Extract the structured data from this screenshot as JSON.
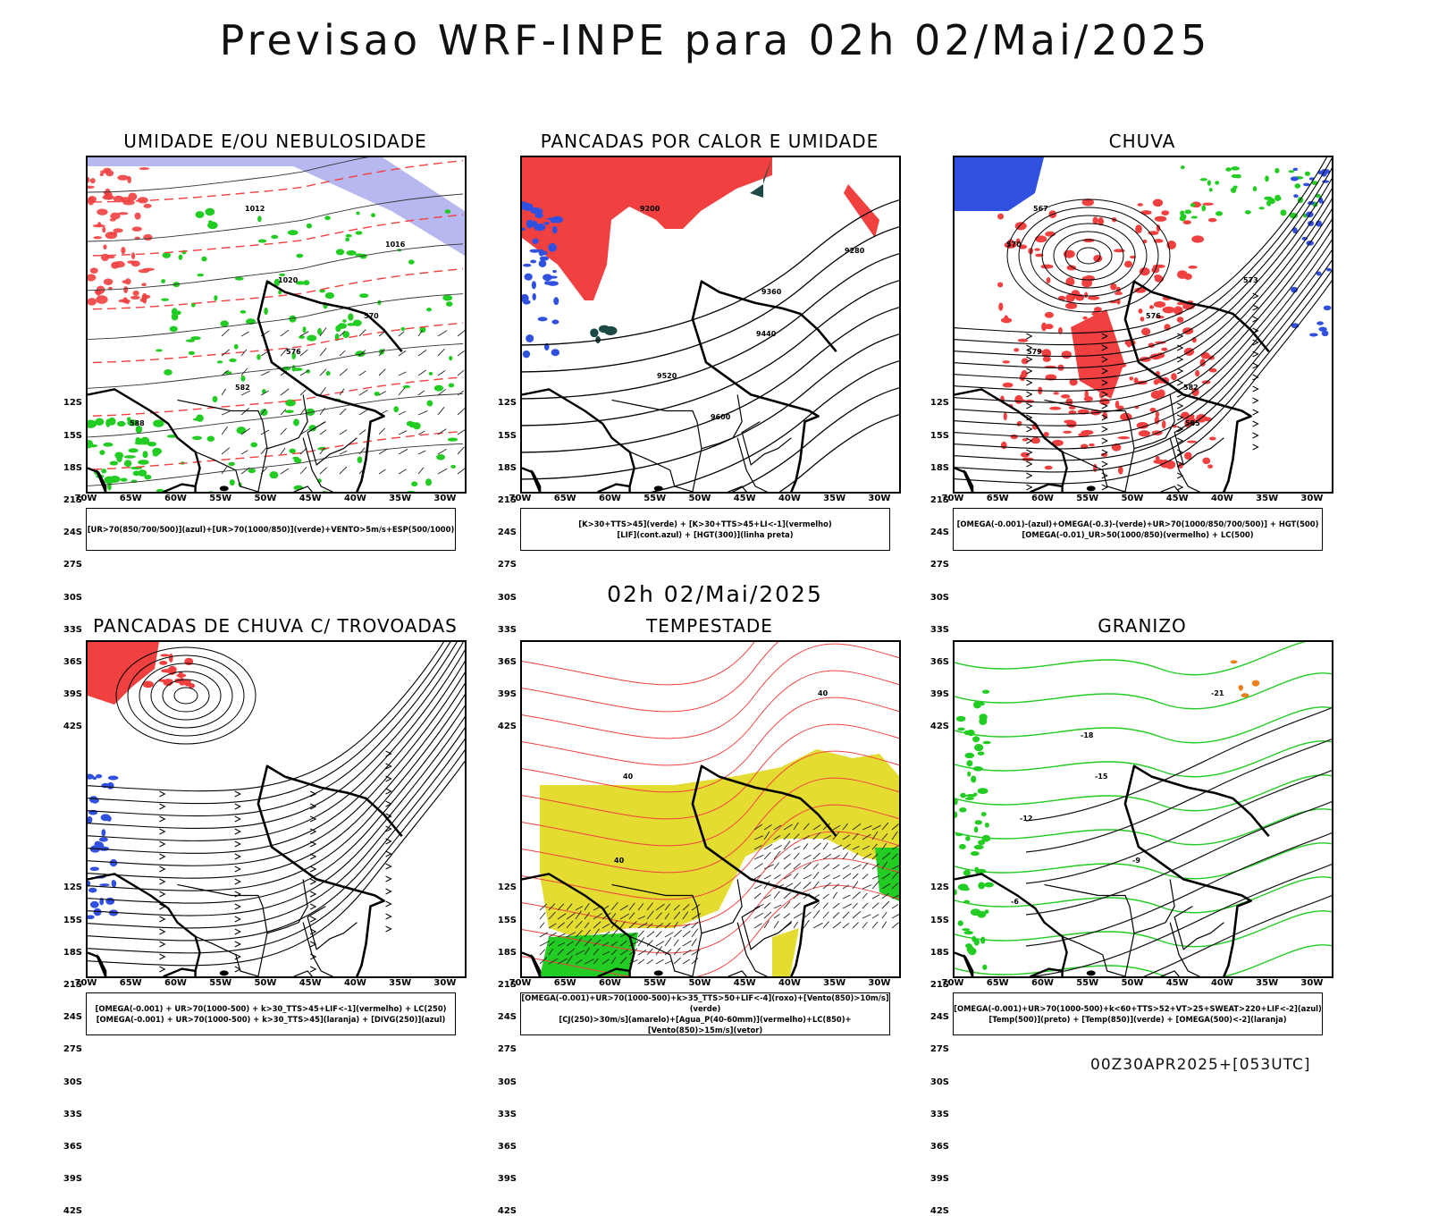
{
  "main_title": "Previsao WRF-INPE  para 02h 02/Mai/2025",
  "middle_label": "02h 02/Mai/2025",
  "footer_stamp": "00Z30APR2025+[053UTC]",
  "axis": {
    "lat_labels": [
      "12S",
      "15S",
      "18S",
      "21S",
      "24S",
      "27S",
      "30S",
      "33S",
      "36S",
      "39S",
      "42S"
    ],
    "lon_labels": [
      "70W",
      "65W",
      "60W",
      "55W",
      "50W",
      "45W",
      "40W",
      "35W",
      "30W"
    ]
  },
  "panels": [
    {
      "title": "UMIDADE E/OU NEBULOSIDADE",
      "legend_lines": [
        "[UR>70(850/700/500)](azul)+[UR>70(1000/850)](verde)+VENTO>5m/s+ESP(500/1000)"
      ],
      "contour_labels": [
        "1012",
        "1016",
        "1020",
        "570",
        "576",
        "582",
        "588"
      ]
    },
    {
      "title": "PANCADAS POR CALOR E UMIDADE",
      "legend_lines": [
        "[K>30+TTS>45](verde) + [K>30+TTS>45+LI<-1](vermelho)",
        "[LIF](cont.azul) + [HGT(300)](linha preta)"
      ],
      "contour_labels": [
        "9200",
        "9280",
        "9360",
        "9440",
        "9520",
        "9600"
      ]
    },
    {
      "title": "CHUVA",
      "legend_lines": [
        "[OMEGA(-0.001)-(azul)+OMEGA(-0.3)-(verde)+UR>70(1000/850/700/500)] + HGT(500)",
        "[OMEGA(-0.01)_UR>50(1000/850)(vermelho) + LC(500)"
      ],
      "contour_labels": [
        "567",
        "570",
        "573",
        "576",
        "579",
        "582",
        "585"
      ]
    },
    {
      "title": "PANCADAS DE CHUVA C/ TROVOADAS",
      "legend_lines": [
        "[OMEGA(-0.001) + UR>70(1000-500) + k>30_TTS>45+LIF<-1](vermelho) + LC(250)",
        "[OMEGA(-0.001) + UR>70(1000-500) + k>30_TTS>45](laranja) + [DIVG(250)](azul)"
      ],
      "contour_labels": []
    },
    {
      "title": "TEMPESTADE",
      "legend_lines": [
        "[OMEGA(-0.001)+UR>70(1000-500)+k>35_TTS>50+LIF<-4](roxo)+[Vento(850)>10m/s](verde)",
        "[CJ(250)>30m/s](amarelo)+[Agua_P(40-60mm)](vermelho)+LC(850)+[Vento(850)>15m/s](vetor)"
      ],
      "contour_labels": [
        "40",
        "40",
        "40"
      ]
    },
    {
      "title": "GRANIZO",
      "legend_lines": [
        "[OMEGA(-0.001)+UR>70(1000-500)+k<60+TTS>52+VT>25+SWEAT>220+LIF<-2](azul)",
        "[Temp(500)](preto) + [Temp(850)](verde) + [OMEGA(500)<-2](laranja)"
      ],
      "contour_labels": [
        "-21",
        "-18",
        "-15",
        "-12",
        "-9",
        "-6"
      ]
    }
  ],
  "colors": {
    "red": "#f04040",
    "blue": "#3050e0",
    "green": "#22cc22",
    "lavender": "#b0b0f0",
    "yellow": "#e4dc30",
    "darkgreen": "#1d4a44",
    "orange": "#e88020"
  }
}
